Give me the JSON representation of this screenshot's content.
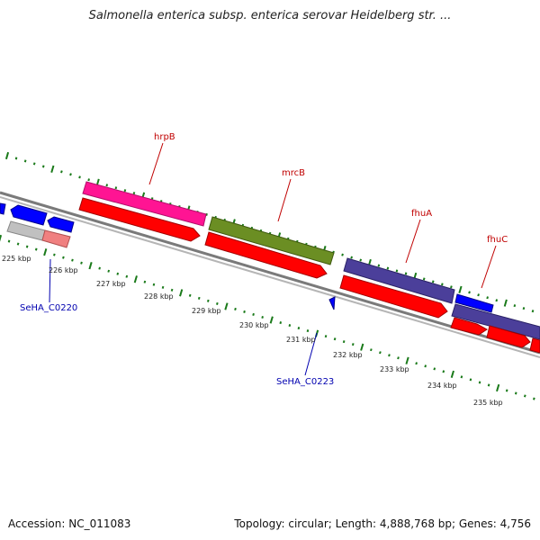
{
  "title": "Salmonella enterica subsp. enterica serovar Heidelberg str. ...",
  "footer": {
    "accession": "Accession: NC_011083",
    "topology": "Topology: circular; Length: 4,888,768 bp; Genes: 4,756"
  },
  "colors": {
    "backbone": "#8c8c8c",
    "tick": "#1a7a1a",
    "pink": "#ff1493",
    "red": "#ff0000",
    "olive": "#6b8e23",
    "purple": "#4b3f9a",
    "blue": "#0000ff",
    "grey": "#c0c0c0",
    "salmon": "#f08080",
    "gene_label": "#c00000",
    "locus_label": "#0000b0"
  },
  "scale_labels": [
    "225 kbp",
    "226 kbp",
    "227 kbp",
    "228 kbp",
    "229 kbp",
    "230 kbp",
    "231 kbp",
    "232 kbp",
    "233 kbp",
    "234 kbp",
    "235 kbp"
  ],
  "gene_labels": [
    "hrpB",
    "mrcB",
    "fhuA",
    "fhuC"
  ],
  "locus_labels": [
    "SeHA_C0220",
    "SeHA_C0223"
  ]
}
